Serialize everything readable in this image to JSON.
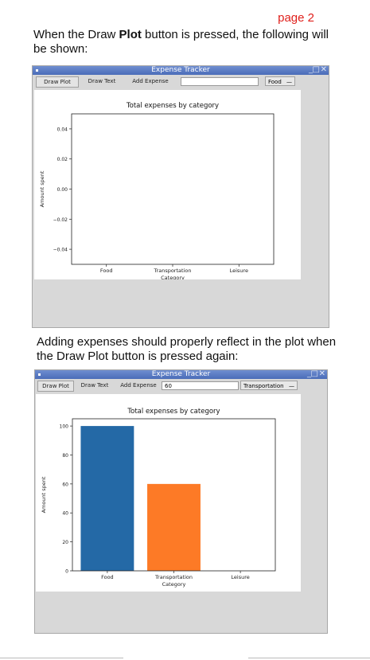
{
  "page_label": "page 2",
  "intro_text_1": "When the Draw ",
  "intro_text_bold": "Plot",
  "intro_text_2": " button is pressed, the following will be shown:",
  "adding_text": "Adding expenses should properly reflect in the plot when the Draw Plot button is pressed again:",
  "windows": [
    {
      "title": "Expense Tracker",
      "toolbar": {
        "draw_plot_label": "Draw Plot",
        "draw_text_label": "Draw Text",
        "add_expense_label": "Add Expense",
        "amount_value": "",
        "category_selected": "Food",
        "select_glyph": "—"
      },
      "chart_data": {
        "type": "bar",
        "title": "Total expenses by category",
        "xlabel": "Category",
        "ylabel": "Amount spent",
        "categories": [
          "Food",
          "Transportation",
          "Leisure"
        ],
        "values": [
          0,
          0,
          0
        ],
        "ylim": [
          -0.05,
          0.05
        ],
        "yticks": [
          "0.04",
          "0.02",
          "0.00",
          "−0.02",
          "−0.04"
        ],
        "ytick_values": [
          0.04,
          0.02,
          0.0,
          -0.02,
          -0.04
        ],
        "bar_colors": [
          "#1f77b4",
          "#ff7f0e",
          "#2ca02c"
        ],
        "grid": false,
        "legend": "none"
      }
    },
    {
      "title": "Expense Tracker",
      "toolbar": {
        "draw_plot_label": "Draw Plot",
        "draw_text_label": "Draw Text",
        "add_expense_label": "Add Expense",
        "amount_value": "60",
        "category_selected": "Transportation",
        "select_glyph": "—"
      },
      "chart_data": {
        "type": "bar",
        "title": "Total expenses by category",
        "xlabel": "Category",
        "ylabel": "Amount spent",
        "categories": [
          "Food",
          "Transportation",
          "Leisure"
        ],
        "values": [
          100,
          60,
          0
        ],
        "ylim": [
          0,
          105
        ],
        "yticks": [
          "0",
          "20",
          "40",
          "60",
          "80",
          "100"
        ],
        "ytick_values": [
          0,
          20,
          40,
          60,
          80,
          100
        ],
        "bar_colors": [
          "#2469a6",
          "#fd7a26",
          "#2ca02c"
        ],
        "grid": false,
        "legend": "none"
      }
    }
  ]
}
